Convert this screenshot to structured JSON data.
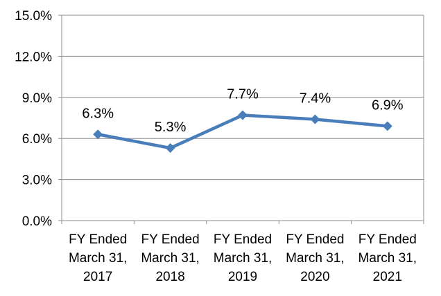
{
  "chart_data": {
    "type": "line",
    "title": "",
    "xlabel": "",
    "ylabel": "",
    "categories": [
      [
        "FY Ended",
        "March 31,",
        "2017"
      ],
      [
        "FY Ended",
        "March 31,",
        "2018"
      ],
      [
        "FY Ended",
        "March 31,",
        "2019"
      ],
      [
        "FY Ended",
        "March 31,",
        "2020"
      ],
      [
        "FY Ended",
        "March 31,",
        "2021"
      ]
    ],
    "series": [
      {
        "values": [
          6.3,
          5.3,
          7.7,
          7.4,
          6.9
        ],
        "labels": [
          "6.3%",
          "5.3%",
          "7.7%",
          "7.4%",
          "6.9%"
        ],
        "color": "#4a7ebb",
        "marker": "diamond"
      }
    ],
    "ylim": [
      0,
      15
    ],
    "yticks": [
      0,
      3,
      6,
      9,
      12,
      15
    ],
    "ytick_labels": [
      "0.0%",
      "3.0%",
      "6.0%",
      "9.0%",
      "12.0%",
      "15.0%"
    ],
    "grid": true,
    "legend": "none"
  }
}
